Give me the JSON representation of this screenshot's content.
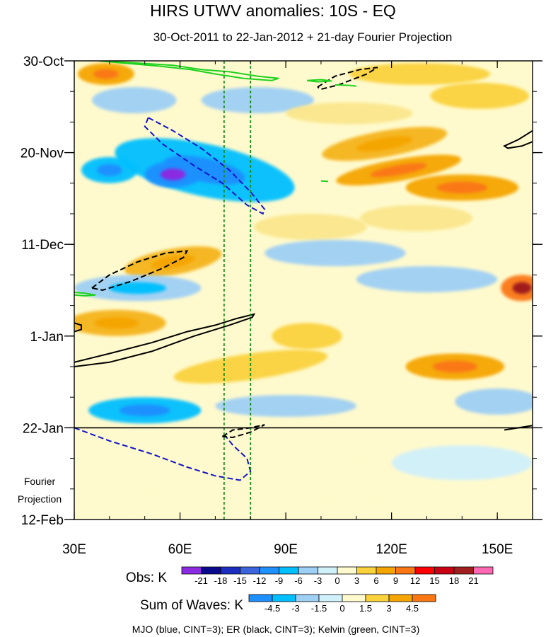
{
  "chart_data": {
    "type": "heatmap",
    "title": "HIRS UTWV anomalies: 10S - EQ",
    "subtitle": "30-Oct-2011 to 22-Jan-2012 + 21-day Fourier Projection",
    "xlim": [
      30,
      160
    ],
    "x_ticks": [
      {
        "value": 30,
        "label": "30E"
      },
      {
        "value": 60,
        "label": "60E"
      },
      {
        "value": 90,
        "label": "90E"
      },
      {
        "value": 120,
        "label": "120E"
      },
      {
        "value": 150,
        "label": "150E"
      }
    ],
    "y_days_range": [
      0,
      105
    ],
    "y_ticks": [
      {
        "day": 0,
        "label": "30-Oct"
      },
      {
        "day": 21,
        "label": "20-Nov"
      },
      {
        "day": 42,
        "label": "11-Dec"
      },
      {
        "day": 63,
        "label": "1-Jan"
      },
      {
        "day": 84,
        "label": "22-Jan"
      },
      {
        "day": 105,
        "label": "12-Feb"
      }
    ],
    "projection_start_day": 84,
    "projection_label": [
      "Fourier",
      "Projection"
    ],
    "reference_longitudes": [
      72.5,
      80
    ],
    "obs_colorbar": {
      "label": "Obs: K",
      "levels": [
        "-21",
        "-18",
        "-15",
        "-12",
        "-9",
        "-6",
        "-3",
        "0",
        "3",
        "6",
        "9",
        "12",
        "15",
        "18",
        "21"
      ],
      "colors": [
        "#8a2be2",
        "#0a0a8c",
        "#1c2ec0",
        "#3c64dc",
        "#1e90ff",
        "#00bfff",
        "#9ecff5",
        "#d0f0fa",
        "#fffacd",
        "#fad23c",
        "#f5a500",
        "#fa7814",
        "#ff0000",
        "#c80014",
        "#a01e1e",
        "#ff69b4"
      ]
    },
    "waves_colorbar": {
      "label": "Sum of Waves: K",
      "levels": [
        "-4.5",
        "-3",
        "-1.5",
        "0",
        "1.5",
        "3",
        "4.5"
      ],
      "colors": [
        "#1e90ff",
        "#00bfff",
        "#9ecff5",
        "#d0f0fa",
        "#fffacd",
        "#fad23c",
        "#f5a500",
        "#fa7814"
      ]
    },
    "contours": [
      {
        "wave": "MJO",
        "color": "#1414c8",
        "type": "negative",
        "path": [
          [
            51,
            13
          ],
          [
            58,
            16
          ],
          [
            66,
            20
          ],
          [
            74,
            25
          ],
          [
            80,
            30
          ],
          [
            84,
            34
          ],
          [
            83.5,
            35
          ],
          [
            79,
            33
          ],
          [
            72,
            28
          ],
          [
            64,
            24
          ],
          [
            55,
            19
          ],
          [
            50,
            15
          ],
          [
            51,
            13
          ]
        ]
      },
      {
        "wave": "MJO",
        "color": "#1414c8",
        "type": "negative",
        "path": [
          [
            30,
            84
          ],
          [
            40,
            87
          ],
          [
            52,
            90
          ],
          [
            62,
            93
          ],
          [
            70,
            95
          ],
          [
            77,
            96
          ],
          [
            80,
            94
          ],
          [
            79,
            91
          ],
          [
            75,
            88
          ],
          [
            72,
            85
          ]
        ]
      },
      {
        "wave": "ER",
        "color": "#000000",
        "type": "positive",
        "path": [
          [
            30,
            69
          ],
          [
            40,
            67
          ],
          [
            52,
            64.5
          ],
          [
            62,
            62
          ],
          [
            70,
            60.5
          ],
          [
            76,
            59
          ],
          [
            81,
            58
          ],
          [
            80.5,
            58.7
          ],
          [
            74,
            60.5
          ],
          [
            64,
            63
          ],
          [
            52,
            66.5
          ],
          [
            40,
            69
          ],
          [
            30,
            70
          ]
        ]
      },
      {
        "wave": "ER",
        "color": "#000000",
        "type": "positive",
        "path": [
          [
            30,
            60
          ],
          [
            32,
            60.5
          ],
          [
            32,
            61.5
          ],
          [
            30,
            62
          ]
        ]
      },
      {
        "wave": "ER",
        "color": "#000000",
        "type": "positive",
        "path": [
          [
            160,
            16
          ],
          [
            156,
            18
          ],
          [
            152,
            19.5
          ],
          [
            153,
            20
          ],
          [
            157,
            19.5
          ],
          [
            160,
            18.5
          ]
        ]
      },
      {
        "wave": "ER",
        "color": "#000000",
        "type": "positive",
        "path": [
          [
            152,
            84.5
          ],
          [
            156,
            84
          ],
          [
            160,
            83.5
          ]
        ]
      },
      {
        "wave": "ER",
        "color": "#000000",
        "type": "negative",
        "path": [
          [
            35,
            52
          ],
          [
            40,
            49
          ],
          [
            48,
            46
          ],
          [
            56,
            44
          ],
          [
            62,
            43.5
          ],
          [
            61,
            45
          ],
          [
            55,
            47.5
          ],
          [
            46,
            50.5
          ],
          [
            38,
            52.5
          ],
          [
            35,
            52
          ]
        ]
      },
      {
        "wave": "ER",
        "color": "#000000",
        "type": "negative",
        "path": [
          [
            99,
            6
          ],
          [
            104,
            3.5
          ],
          [
            111,
            2
          ],
          [
            116,
            1.5
          ],
          [
            113,
            3
          ],
          [
            105,
            5.5
          ],
          [
            100,
            6.5
          ],
          [
            99,
            6
          ]
        ]
      },
      {
        "wave": "ER",
        "color": "#000000",
        "type": "negative",
        "path": [
          [
            72,
            86
          ],
          [
            75,
            84.5
          ],
          [
            80,
            84
          ],
          [
            84,
            83.3
          ],
          [
            80,
            85
          ],
          [
            75,
            86.2
          ],
          [
            72,
            86
          ]
        ]
      },
      {
        "wave": "Kelvin",
        "color": "#1ed21e",
        "type": "positive",
        "path": [
          [
            37,
            0
          ],
          [
            48,
            0.5
          ],
          [
            58,
            1
          ],
          [
            66,
            2
          ],
          [
            74,
            2.5
          ],
          [
            82,
            3.5
          ],
          [
            88,
            4
          ],
          [
            86,
            4.5
          ],
          [
            78,
            4
          ],
          [
            70,
            3
          ],
          [
            63,
            2
          ],
          [
            54,
            1.2
          ],
          [
            44,
            0.5
          ],
          [
            37,
            0
          ]
        ]
      },
      {
        "wave": "Kelvin",
        "color": "#1ed21e",
        "type": "positive",
        "path": [
          [
            96,
            4.5
          ],
          [
            100,
            4.3
          ],
          [
            103,
            4.6
          ],
          [
            99,
            4.8
          ],
          [
            96,
            4.5
          ]
        ]
      },
      {
        "wave": "Kelvin",
        "color": "#1ed21e",
        "type": "positive",
        "path": [
          [
            104,
            5.5
          ],
          [
            108,
            5.6
          ],
          [
            110,
            5.8
          ]
        ]
      },
      {
        "wave": "Kelvin",
        "color": "#1ed21e",
        "type": "positive",
        "path": [
          [
            30,
            53
          ],
          [
            33,
            53.2
          ],
          [
            36,
            53.6
          ],
          [
            33,
            53.8
          ],
          [
            30,
            53.6
          ]
        ]
      },
      {
        "wave": "Kelvin",
        "color": "#1ed21e",
        "type": "positive",
        "path": [
          [
            100,
            27.5
          ],
          [
            102,
            27.6
          ]
        ]
      }
    ],
    "anomaly_patches": [
      {
        "lon": 39,
        "day": 3,
        "rx": 8,
        "ry": 2.5,
        "level": 5,
        "rot": 0
      },
      {
        "lon": 47,
        "day": 9,
        "rx": 12,
        "ry": 3,
        "level": -3,
        "rot": 0
      },
      {
        "lon": 82,
        "day": 9,
        "rx": 16,
        "ry": 3,
        "level": -3,
        "rot": 0
      },
      {
        "lon": 108,
        "day": 12,
        "rx": 18,
        "ry": 2.5,
        "level": 2,
        "rot": 0
      },
      {
        "lon": 128,
        "day": 3,
        "rx": 20,
        "ry": 2.5,
        "level": 3,
        "rot": 0
      },
      {
        "lon": 145,
        "day": 8,
        "rx": 14,
        "ry": 3,
        "level": 3,
        "rot": 0
      },
      {
        "lon": 118,
        "day": 19,
        "rx": 18,
        "ry": 3,
        "level": 4,
        "rot": -10
      },
      {
        "lon": 122,
        "day": 25,
        "rx": 18,
        "ry": 2.5,
        "level": 5,
        "rot": -10
      },
      {
        "lon": 140,
        "day": 29,
        "rx": 16,
        "ry": 3,
        "level": 5,
        "rot": 0
      },
      {
        "lon": 67,
        "day": 25,
        "rx": 26,
        "ry": 6,
        "level": -7,
        "rot": 12
      },
      {
        "lon": 58,
        "day": 26,
        "rx": 8,
        "ry": 3,
        "level": -9,
        "rot": 0
      },
      {
        "lon": 40,
        "day": 25,
        "rx": 8,
        "ry": 3,
        "level": -6,
        "rot": 0
      },
      {
        "lon": 97,
        "day": 38,
        "rx": 16,
        "ry": 3,
        "level": 2,
        "rot": 0
      },
      {
        "lon": 127,
        "day": 36,
        "rx": 16,
        "ry": 3,
        "level": 2,
        "rot": 0
      },
      {
        "lon": 104,
        "day": 44,
        "rx": 20,
        "ry": 3,
        "level": -3,
        "rot": 0
      },
      {
        "lon": 58,
        "day": 46,
        "rx": 14,
        "ry": 3,
        "level": 4,
        "rot": -10
      },
      {
        "lon": 48,
        "day": 52,
        "rx": 18,
        "ry": 3,
        "level": -4,
        "rot": 0
      },
      {
        "lon": 130,
        "day": 50,
        "rx": 20,
        "ry": 3,
        "level": -3,
        "rot": 0
      },
      {
        "lon": 157,
        "day": 52,
        "rx": 6,
        "ry": 3,
        "level": 6,
        "rot": 0
      },
      {
        "lon": 42,
        "day": 60,
        "rx": 14,
        "ry": 3,
        "level": 4,
        "rot": 0
      },
      {
        "lon": 96,
        "day": 63,
        "rx": 10,
        "ry": 3,
        "level": 3,
        "rot": 0
      },
      {
        "lon": 80,
        "day": 70,
        "rx": 22,
        "ry": 3,
        "level": 3,
        "rot": -8
      },
      {
        "lon": 138,
        "day": 70,
        "rx": 14,
        "ry": 3,
        "level": 5,
        "rot": 0
      },
      {
        "lon": 50,
        "day": 80,
        "rx": 16,
        "ry": 3,
        "level": -6,
        "rot": 0
      },
      {
        "lon": 90,
        "day": 79,
        "rx": 20,
        "ry": 2.5,
        "level": -3,
        "rot": 0
      },
      {
        "lon": 150,
        "day": 78,
        "rx": 12,
        "ry": 3,
        "level": -3,
        "rot": 0
      },
      {
        "lon": 108,
        "day": 96,
        "rx": 30,
        "ry": 5,
        "level": 1,
        "rot": 0
      },
      {
        "lon": 140,
        "day": 92,
        "rx": 20,
        "ry": 4,
        "level": -1,
        "rot": 0
      },
      {
        "lon": 42,
        "day": 100,
        "rx": 12,
        "ry": 4,
        "level": 1,
        "rot": 0
      }
    ],
    "footnote": "MJO (blue, CINT=3); ER (black, CINT=3); Kelvin (green, CINT=3)"
  }
}
